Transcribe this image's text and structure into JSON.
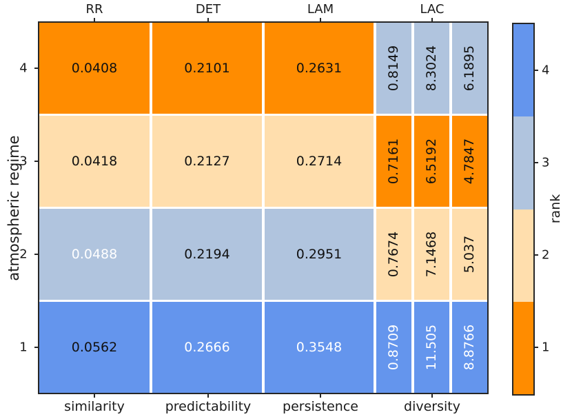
{
  "chart_data": {
    "type": "heatmap",
    "ylabel": "atmospheric regime",
    "colorbar_label": "rank",
    "top_labels": [
      "RR",
      "DET",
      "LAM",
      "LAC"
    ],
    "bottom_labels": [
      "similarity",
      "predictability",
      "persistence",
      "diversity"
    ],
    "y_tick_labels": [
      "4",
      "3",
      "2",
      "1"
    ],
    "colorbar_tick_labels": [
      "4",
      "3",
      "2",
      "1"
    ],
    "colorbar_order_top_to_bottom": [
      4,
      3,
      2,
      1
    ],
    "palette": {
      "rank1": "#ff8c00",
      "rank2": "#ffdead",
      "rank3": "#b0c4de",
      "rank4": "#6495ed"
    },
    "rows": [
      {
        "regime": "4",
        "cells": [
          {
            "col": "RR",
            "value": "0.0408",
            "rank": 1,
            "white": false,
            "rotated": false
          },
          {
            "col": "DET",
            "value": "0.2101",
            "rank": 1,
            "white": false,
            "rotated": false
          },
          {
            "col": "LAM",
            "value": "0.2631",
            "rank": 1,
            "white": false,
            "rotated": false
          },
          {
            "col": "LAC1",
            "value": "0.8149",
            "rank": 3,
            "white": false,
            "rotated": true
          },
          {
            "col": "LAC2",
            "value": "8.3024",
            "rank": 3,
            "white": false,
            "rotated": true
          },
          {
            "col": "LAC3",
            "value": "6.1895",
            "rank": 3,
            "white": false,
            "rotated": true
          }
        ]
      },
      {
        "regime": "3",
        "cells": [
          {
            "col": "RR",
            "value": "0.0418",
            "rank": 2,
            "white": false,
            "rotated": false
          },
          {
            "col": "DET",
            "value": "0.2127",
            "rank": 2,
            "white": false,
            "rotated": false
          },
          {
            "col": "LAM",
            "value": "0.2714",
            "rank": 2,
            "white": false,
            "rotated": false
          },
          {
            "col": "LAC1",
            "value": "0.7161",
            "rank": 1,
            "white": false,
            "rotated": true
          },
          {
            "col": "LAC2",
            "value": "6.5192",
            "rank": 1,
            "white": false,
            "rotated": true
          },
          {
            "col": "LAC3",
            "value": "4.7847",
            "rank": 1,
            "white": false,
            "rotated": true
          }
        ]
      },
      {
        "regime": "2",
        "cells": [
          {
            "col": "RR",
            "value": "0.0488",
            "rank": 3,
            "white": true,
            "rotated": false
          },
          {
            "col": "DET",
            "value": "0.2194",
            "rank": 3,
            "white": false,
            "rotated": false
          },
          {
            "col": "LAM",
            "value": "0.2951",
            "rank": 3,
            "white": false,
            "rotated": false
          },
          {
            "col": "LAC1",
            "value": "0.7674",
            "rank": 2,
            "white": false,
            "rotated": true
          },
          {
            "col": "LAC2",
            "value": "7.1468",
            "rank": 2,
            "white": false,
            "rotated": true
          },
          {
            "col": "LAC3",
            "value": "5.037",
            "rank": 2,
            "white": false,
            "rotated": true
          }
        ]
      },
      {
        "regime": "1",
        "cells": [
          {
            "col": "RR",
            "value": "0.0562",
            "rank": 4,
            "white": false,
            "rotated": false
          },
          {
            "col": "DET",
            "value": "0.2666",
            "rank": 4,
            "white": true,
            "rotated": false
          },
          {
            "col": "LAM",
            "value": "0.3548",
            "rank": 4,
            "white": true,
            "rotated": false
          },
          {
            "col": "LAC1",
            "value": "0.8709",
            "rank": 4,
            "white": true,
            "rotated": true
          },
          {
            "col": "LAC2",
            "value": "11.505",
            "rank": 4,
            "white": true,
            "rotated": true
          },
          {
            "col": "LAC3",
            "value": "8.8766",
            "rank": 4,
            "white": true,
            "rotated": true
          }
        ]
      }
    ]
  }
}
